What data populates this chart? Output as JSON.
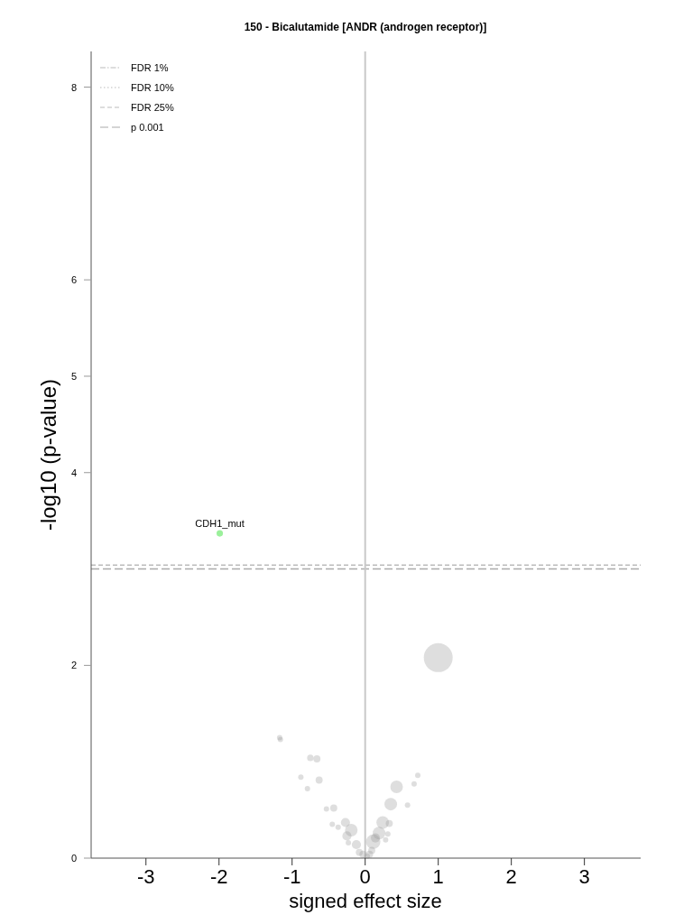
{
  "chart_data": {
    "type": "bubble",
    "title": "150 - Bicalutamide [ANDR (androgen receptor)]",
    "xlabel": "signed effect size",
    "ylabel": "-log10 (p-value)",
    "xlim": [
      -3.75,
      3.77
    ],
    "xticks": [
      -3,
      -2,
      -1,
      0,
      1,
      2,
      3
    ],
    "ylim": [
      0,
      8.37
    ],
    "yticks": [
      0,
      2,
      4,
      5,
      6,
      8
    ],
    "legend": "top left",
    "grid": false,
    "series": [
      {
        "color": "#999999",
        "x": [
          -1.17,
          -1.16,
          -0.75,
          -0.66,
          -0.88,
          -0.63,
          -0.79,
          -0.53,
          -0.43,
          -0.45,
          -0.37,
          -0.27,
          -0.19,
          -0.25,
          -0.23,
          -0.12,
          -0.08,
          -0.03,
          0.72,
          0.67,
          0.43,
          0.35,
          0.58,
          0.24,
          0.33,
          0.19,
          0.14,
          0.11,
          0.31,
          0.28,
          0.09,
          0.06,
          0.03,
          1.0
        ],
        "values": [
          1.25,
          1.23,
          1.04,
          1.03,
          0.84,
          0.81,
          0.72,
          0.51,
          0.52,
          0.35,
          0.32,
          0.37,
          0.29,
          0.23,
          0.16,
          0.14,
          0.06,
          0.04,
          0.86,
          0.77,
          0.74,
          0.56,
          0.55,
          0.37,
          0.36,
          0.26,
          0.21,
          0.17,
          0.25,
          0.19,
          0.08,
          0.04,
          0.02,
          2.08
        ],
        "sizes": [
          0.035,
          0.035,
          0.05,
          0.06,
          0.035,
          0.06,
          0.035,
          0.035,
          0.06,
          0.035,
          0.035,
          0.1,
          0.19,
          0.1,
          0.035,
          0.1,
          0.06,
          0.06,
          0.035,
          0.035,
          0.19,
          0.19,
          0.035,
          0.19,
          0.06,
          0.19,
          0.1,
          0.25,
          0.035,
          0.035,
          0.06,
          0.06,
          0.035,
          1
        ]
      },
      {
        "color": "#90ee90",
        "x": [
          -1.99
        ],
        "values": [
          3.37
        ],
        "sizes": [
          0.05
        ]
      }
    ],
    "annotations": [
      {
        "text": "CDH1_mut",
        "x": -1.99,
        "y": 3.37
      }
    ],
    "ref_lines": [
      {
        "value": null,
        "label": "FDR 1%",
        "line_style": "dashdot",
        "color": "#bbbbbb"
      },
      {
        "value": null,
        "label": "FDR 10%",
        "line_style": "dotted",
        "color": "#bbbbbb"
      },
      {
        "axis": "y",
        "value": 3.04,
        "label": "FDR 25%",
        "line_style": "dashed",
        "color": "#bbbbbb"
      },
      {
        "axis": "y",
        "value": 3.0,
        "label": "p 0.001",
        "line_style": "longdash",
        "color": "#aaaaaa"
      },
      {
        "axis": "x",
        "value": 0,
        "line_style": "solid",
        "color": "#c8c8c8"
      }
    ]
  }
}
